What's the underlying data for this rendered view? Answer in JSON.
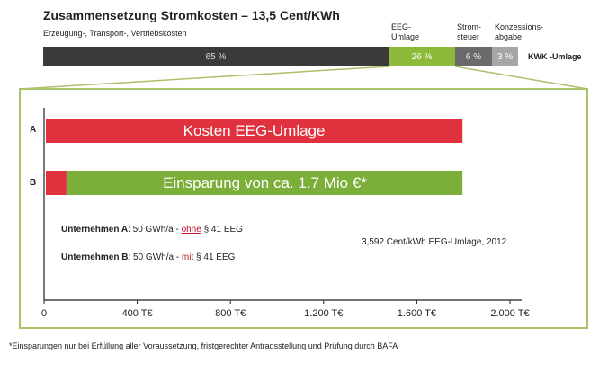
{
  "title": "Zusammensetzung Stromkosten – 13,5 Cent/KWh",
  "top_bar": {
    "segments": [
      {
        "label": "Erzeugung-, Transport-, Vertriebskosten",
        "value_label": "65 %",
        "color": "#3a3a3a"
      },
      {
        "label": "EEG-Umlage",
        "value_label": "26 %",
        "color": "#8dba3a"
      },
      {
        "label": "Strom-steuer",
        "value_label": "6 %",
        "color": "#6a6a6a"
      },
      {
        "label": "Konzessions-abgabe",
        "value_label": "3 %",
        "color": "#a6a6a6"
      }
    ],
    "kwk_label": "KWK -Umlage"
  },
  "labels": {
    "eeg_line1": "EEG-",
    "eeg_line2": "Umlage",
    "strom_line1": "Strom-",
    "strom_line2": "steuer",
    "konz_line1": "Konzessions-",
    "konz_line2": "abgabe"
  },
  "chart_data": {
    "type": "bar",
    "orientation": "horizontal",
    "categories": [
      "A",
      "B"
    ],
    "xlim": [
      0,
      2000
    ],
    "xticks": [
      0,
      400,
      800,
      1200,
      1600,
      2000
    ],
    "xtick_labels": [
      "0",
      "400 T€",
      "800 T€",
      "1.200 T€",
      "1.600 T€",
      "2.000 T€"
    ],
    "bars": [
      {
        "category": "A",
        "segments": [
          {
            "start": 0,
            "end": 1796,
            "color": "#e0313f",
            "label": "Kosten EEG-Umlage"
          }
        ]
      },
      {
        "category": "B",
        "segments": [
          {
            "start": 0,
            "end": 96,
            "color": "#e0313f",
            "label": ""
          },
          {
            "start": 100,
            "end": 1796,
            "color": "#7cae3a",
            "label": "Einsparung von ca. 1.7 Mio €*"
          }
        ]
      }
    ]
  },
  "notes": {
    "a_prefix": "Unternehmen A",
    "a_text": ": 50 GWh/a - ",
    "a_keyword": "ohne",
    "a_suffix": " § 41 EEG",
    "b_prefix": "Unternehmen B",
    "b_text": ": 50 GWh/a - ",
    "b_keyword": "mit",
    "b_suffix": " § 41 EEG",
    "price": "3,592 Cent/kWh EEG-Umlage, 2012"
  },
  "footnote": "*Einsparungen nur bei Erfüllung aller Voraussetzung, fristgerechter Antragsstellung und Prüfung durch BAFA"
}
